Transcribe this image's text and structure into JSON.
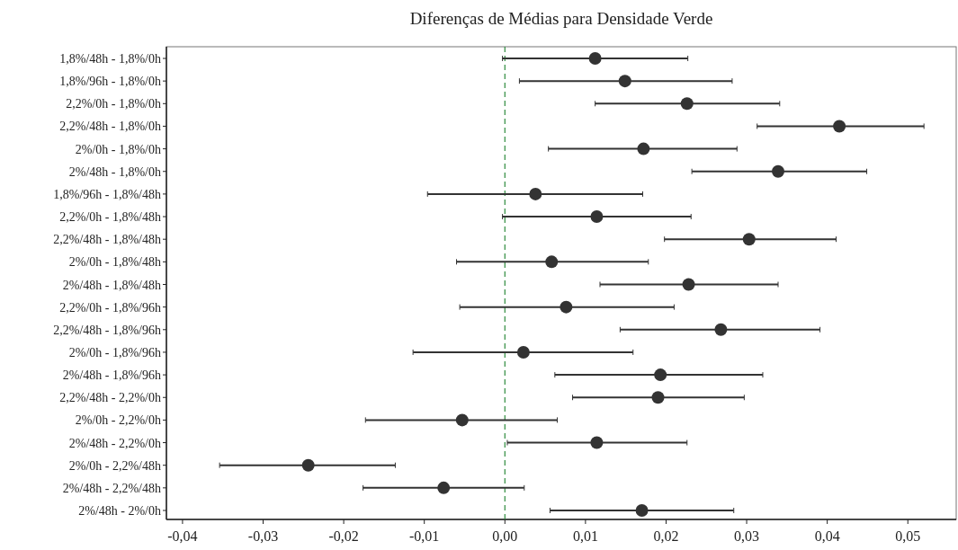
{
  "chart_data": {
    "type": "scatter",
    "orientation": "horizontal",
    "title": "Diferenças de Médias para Densidade Verde",
    "categories": [
      "1,8%/48h - 1,8%/0h",
      "1,8%/96h - 1,8%/0h",
      "2,2%/0h - 1,8%/0h",
      "2,2%/48h - 1,8%/0h",
      "2%/0h - 1,8%/0h",
      "2%/48h - 1,8%/0h",
      "1,8%/96h - 1,8%/48h",
      "2,2%/0h - 1,8%/48h",
      "2,2%/48h - 1,8%/48h",
      "2%/0h - 1,8%/48h",
      "2%/48h - 1,8%/48h",
      "2,2%/0h - 1,8%/96h",
      "2,2%/48h - 1,8%/96h",
      "2%/0h - 1,8%/96h",
      "2%/48h - 1,8%/96h",
      "2,2%/48h - 2,2%/0h",
      "2%/0h - 2,2%/0h",
      "2%/48h - 2,2%/0h",
      "2%/0h - 2,2%/48h",
      "2%/48h - 2,2%/48h",
      "2%/48h - 2%/0h"
    ],
    "values": [
      0.0112,
      0.0149,
      0.0226,
      0.0415,
      0.0172,
      0.0339,
      0.0038,
      0.0114,
      0.0303,
      0.0058,
      0.0228,
      0.0076,
      0.0268,
      0.0023,
      0.0193,
      0.019,
      -0.0053,
      0.0114,
      -0.0244,
      -0.0076,
      0.017
    ],
    "errors": [
      [
        -0.0003,
        0.0227
      ],
      [
        0.0018,
        0.0282
      ],
      [
        0.0112,
        0.0341
      ],
      [
        0.0313,
        0.052
      ],
      [
        0.0054,
        0.0288
      ],
      [
        0.0232,
        0.0449
      ],
      [
        -0.0096,
        0.0171
      ],
      [
        -0.0003,
        0.0231
      ],
      [
        0.0198,
        0.0411
      ],
      [
        -0.006,
        0.0178
      ],
      [
        0.0118,
        0.0339
      ],
      [
        -0.0056,
        0.021
      ],
      [
        0.0143,
        0.0391
      ],
      [
        -0.0114,
        0.0159
      ],
      [
        0.0062,
        0.032
      ],
      [
        0.0084,
        0.0297
      ],
      [
        -0.0173,
        0.0065
      ],
      [
        0.0003,
        0.0226
      ],
      [
        -0.0354,
        -0.0136
      ],
      [
        -0.0176,
        0.0024
      ],
      [
        0.0056,
        0.0284
      ]
    ],
    "color": "#333333",
    "marker": "circle",
    "xlim": [
      -0.042,
      0.056
    ],
    "xticks": [
      {
        "value": -0.04,
        "label": "-0,04"
      },
      {
        "value": -0.03,
        "label": "-0,03"
      },
      {
        "value": -0.02,
        "label": "-0,02"
      },
      {
        "value": -0.01,
        "label": "-0,01"
      },
      {
        "value": 0,
        "label": "0,00"
      },
      {
        "value": 0.01,
        "label": "0,01"
      },
      {
        "value": 0.02,
        "label": "0,02"
      },
      {
        "value": 0.03,
        "label": "0,03"
      },
      {
        "value": 0.04,
        "label": "0,04"
      },
      {
        "value": 0.05,
        "label": "0,05"
      }
    ],
    "ref_lines": [
      {
        "axis": "x",
        "value": 0,
        "color": "#2e8b3e",
        "line_style": "dashed"
      }
    ],
    "grid": false
  }
}
